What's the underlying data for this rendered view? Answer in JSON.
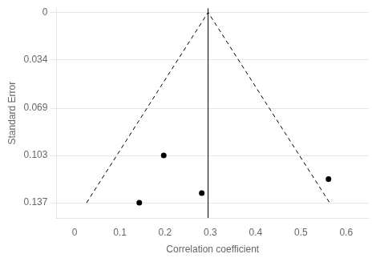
{
  "chart_data": {
    "type": "scatter",
    "xlabel": "Correlation coefficient",
    "ylabel": "Standard Error",
    "xlim": [
      -0.04,
      0.65
    ],
    "ylim": [
      0.148,
      -0.003
    ],
    "xticks": [
      0,
      0.1,
      0.2,
      0.3,
      0.4,
      0.5,
      0.6
    ],
    "yticks": [
      0,
      0.034,
      0.069,
      0.103,
      0.137
    ],
    "grid": "y",
    "legend": false,
    "series": [
      {
        "type": "scatter",
        "x": [
          0.143,
          0.197,
          0.281,
          0.561
        ],
        "values": [
          0.137,
          0.103,
          0.13,
          0.12
        ],
        "color": "#000000",
        "marker": "circle"
      },
      {
        "type": "line",
        "x": [
          0.02648,
          0.295,
          0.56352
        ],
        "values": [
          0.137,
          0,
          0.137
        ],
        "color": "#000000",
        "line_style": "dashed"
      },
      {
        "type": "line",
        "x": [
          0.295,
          0.295
        ],
        "values": [
          0.148,
          -0.003
        ],
        "color": "#000000",
        "line_style": "solid"
      }
    ]
  }
}
